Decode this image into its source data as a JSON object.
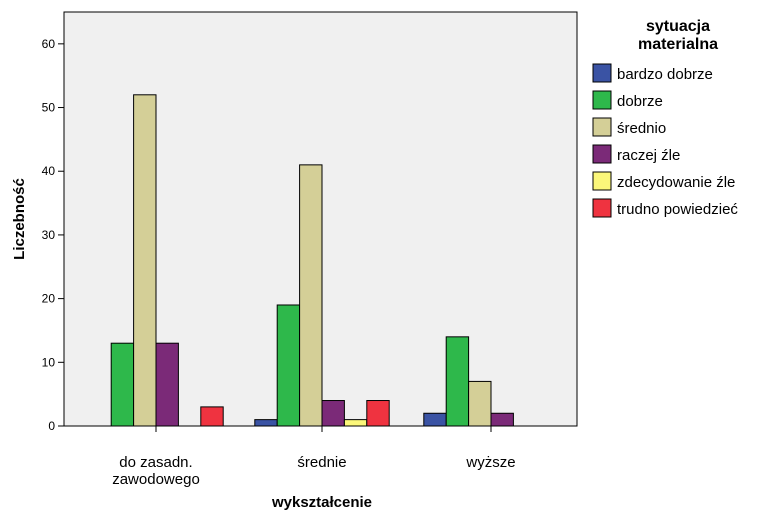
{
  "chart_data": {
    "type": "bar",
    "categories": [
      "do zasadn.\nzawodowego",
      "średnie",
      "wyższe"
    ],
    "xlabel": "wykształcenie",
    "ylabel": "Liczebność",
    "ylim": [
      0,
      65
    ],
    "yticks": [
      0,
      10,
      20,
      30,
      40,
      50,
      60
    ],
    "legend_title": "sytuacja\nmaterialna",
    "legend_position": "right",
    "series": [
      {
        "name": "bardzo dobrze",
        "color": "#3a53a4",
        "values": [
          0,
          1,
          2
        ]
      },
      {
        "name": "dobrze",
        "color": "#2eb84b",
        "values": [
          13,
          19,
          14
        ]
      },
      {
        "name": "średnio",
        "color": "#d4cf97",
        "values": [
          52,
          41,
          7
        ]
      },
      {
        "name": "raczej źle",
        "color": "#7b2a78",
        "values": [
          13,
          4,
          2
        ]
      },
      {
        "name": "zdecydowanie źle",
        "color": "#fbf77a",
        "values": [
          0,
          1,
          0
        ]
      },
      {
        "name": "trudno powiedzieć",
        "color": "#ef3340",
        "values": [
          3,
          4,
          0
        ]
      }
    ],
    "plot_background": "#f0f0f0"
  }
}
